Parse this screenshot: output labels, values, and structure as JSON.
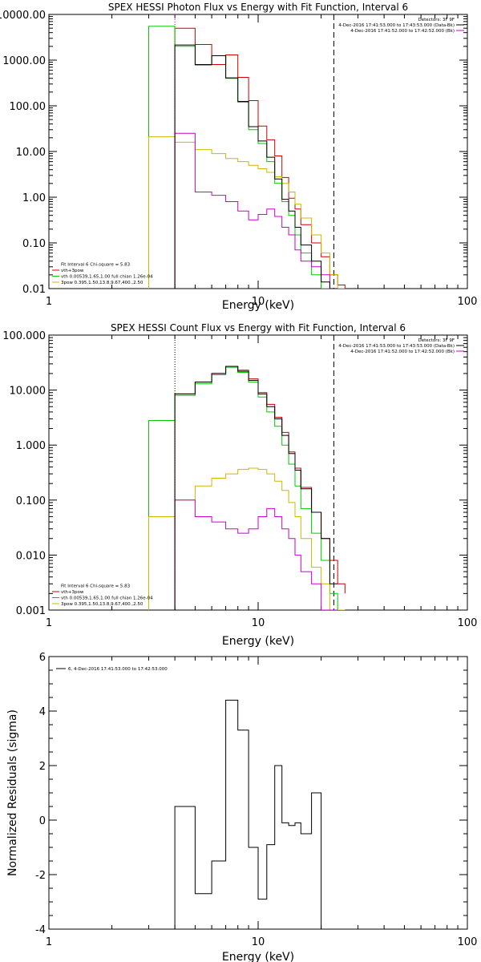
{
  "chart_data": [
    {
      "type": "line",
      "title": "SPEX HESSI Photon Flux vs Energy with Fit Function, Interval 6",
      "xlabel": "Energy (keV)",
      "ylabel": "",
      "x_scale": "log",
      "y_scale": "log",
      "xlim": [
        1,
        100
      ],
      "ylim": [
        0.01,
        10000
      ],
      "x_ticks": [
        1,
        10,
        100
      ],
      "x_tick_labels": [
        "1",
        "10",
        "100"
      ],
      "y_ticks": [
        0.01,
        0.1,
        1,
        10,
        100,
        1000,
        10000
      ],
      "y_tick_labels": [
        "0.01",
        "0.10",
        "1.00",
        "10.00",
        "100.00",
        "1000.00",
        "10000.00"
      ],
      "vlines": [
        {
          "x": 4,
          "style": "dotted",
          "color": "#cc00cc"
        },
        {
          "x": 23,
          "style": "dashed",
          "color": "#000000"
        }
      ],
      "legend_top_right": [
        {
          "text": "Detectors: 3F 9F",
          "color": ""
        },
        {
          "text": "4-Dec-2016 17:41:53.000 to 17:43:53.000 (Data-Bk)",
          "color": "#000000"
        },
        {
          "text": "4-Dec-2016 17:41:52.000 to 17:42:52.000 (Bk)",
          "color": "#cc00cc"
        }
      ],
      "legend_bottom_left": [
        {
          "text": "Fit Interval 6   Chi-square = 5.83",
          "color": ""
        },
        {
          "text": "vth+3pow",
          "color": "#cc0000"
        },
        {
          "text": "vth 0.00539,1.65,1.00  full chian 1.26e-04",
          "color": "#00cc00"
        },
        {
          "text": "3pow 0.395,1.50,13.8,9.67,400.,2.50",
          "color": "#ccb800"
        }
      ],
      "bin_edges": [
        3,
        4,
        5,
        6,
        7,
        8,
        9,
        10,
        11,
        12,
        13,
        14,
        15,
        16,
        18,
        20,
        22,
        24,
        26
      ],
      "series": [
        {
          "values": [
            5000,
            2200,
            800,
            1300,
            420,
            130,
            36,
            18,
            8,
            2.7,
            0.95,
            0.55,
            0.25,
            0.1,
            0.05,
            0.02,
            0.012,
            0.01
          ],
          "color": "#cc0000",
          "start_bin": 1
        },
        {
          "values": [
            5500,
            2000,
            780,
            1250,
            400,
            120,
            30,
            15,
            6,
            2.0,
            0.8,
            0.4,
            0.15,
            0.06,
            0.02,
            0.01,
            0.01,
            0.01
          ],
          "color": "#00cc00",
          "start_bin": 0
        },
        {
          "values": [
            21,
            16,
            11,
            9,
            7,
            6,
            5,
            4.2,
            3.5,
            2.8,
            2.0,
            1.3,
            0.7,
            0.35,
            0.15,
            0.06,
            0.02,
            0.01
          ],
          "color": "#ccb800",
          "start_bin": 0
        },
        {
          "values": [
            25,
            1.3,
            1.1,
            0.8,
            0.5,
            0.32,
            0.42,
            0.55,
            0.38,
            0.22,
            0.15,
            0.07,
            0.04,
            0.03,
            0.02,
            0.01
          ],
          "color": "#cc00cc",
          "start_bin": 1
        },
        {
          "values": [
            2150,
            800,
            1250,
            410,
            125,
            35,
            17,
            7.5,
            2.5,
            0.9,
            0.5,
            0.22,
            0.09,
            0.04,
            0.014,
            0.01
          ],
          "color": "#000000",
          "start_bin": 1
        }
      ]
    },
    {
      "type": "line",
      "title": "SPEX HESSI Count Flux vs Energy with Fit Function, Interval 6",
      "xlabel": "Energy (keV)",
      "ylabel": "",
      "x_scale": "log",
      "y_scale": "log",
      "xlim": [
        1,
        100
      ],
      "ylim": [
        0.001,
        100
      ],
      "x_ticks": [
        1,
        10,
        100
      ],
      "x_tick_labels": [
        "1",
        "10",
        "100"
      ],
      "y_ticks": [
        0.001,
        0.01,
        0.1,
        1,
        10,
        100
      ],
      "y_tick_labels": [
        "0.001",
        "0.010",
        "0.100",
        "1.000",
        "10.000",
        "100.000"
      ],
      "vlines": [
        {
          "x": 4,
          "style": "dotted",
          "color": "#000000"
        },
        {
          "x": 23,
          "style": "dashed",
          "color": "#000000"
        }
      ],
      "legend_top_right": [
        {
          "text": "Detectors: 3F 9F",
          "color": ""
        },
        {
          "text": "4-Dec-2016 17:41:53.000 to 17:43:53.000 (Data-Bk)",
          "color": "#000000"
        },
        {
          "text": "4-Dec-2016 17:41:52.000 to 17:42:52.000 (Bk)",
          "color": "#cc00cc"
        }
      ],
      "legend_bottom_left": [
        {
          "text": "Fit Interval 6   Chi-square = 5.83",
          "color": ""
        },
        {
          "text": "vth+3pow",
          "color": "#cc0000"
        },
        {
          "text": "vth 0.00539,1.65,1.00  full chian 1.26e-04",
          "color": "#00cc00"
        },
        {
          "text": "3pow 0.395,1.50,13.8,9.67,400.,2.50",
          "color": "#ccb800"
        }
      ],
      "bin_edges": [
        3,
        4,
        5,
        6,
        7,
        8,
        9,
        10,
        11,
        12,
        13,
        14,
        15,
        16,
        18,
        20,
        22,
        24,
        26
      ],
      "series": [
        {
          "values": [
            8.5,
            14,
            20,
            27,
            23,
            16,
            9,
            5.5,
            3.2,
            1.7,
            0.75,
            0.38,
            0.17,
            0.06,
            0.02,
            0.008,
            0.003,
            0.002
          ],
          "color": "#cc0000",
          "start_bin": 1
        },
        {
          "values": [
            2.8,
            8,
            13,
            19,
            26,
            21,
            14,
            7.5,
            4,
            2.2,
            1.0,
            0.45,
            0.18,
            0.07,
            0.025,
            0.008,
            0.002,
            0.001
          ],
          "color": "#00cc00",
          "start_bin": 0
        },
        {
          "values": [
            0.05,
            0.1,
            0.18,
            0.25,
            0.3,
            0.36,
            0.38,
            0.36,
            0.3,
            0.22,
            0.15,
            0.09,
            0.05,
            0.02,
            0.006,
            0.003,
            0.001,
            0.001
          ],
          "color": "#ccb800",
          "start_bin": 0
        },
        {
          "values": [
            0.1,
            0.05,
            0.04,
            0.03,
            0.025,
            0.03,
            0.05,
            0.07,
            0.05,
            0.03,
            0.02,
            0.01,
            0.005,
            0.003,
            0.001,
            0.001
          ],
          "color": "#cc00cc",
          "start_bin": 1
        },
        {
          "values": [
            8.5,
            14,
            20,
            27,
            22,
            15,
            8.5,
            5,
            3,
            1.5,
            0.7,
            0.35,
            0.16,
            0.06,
            0.02,
            0.003
          ],
          "color": "#000000",
          "start_bin": 1
        }
      ]
    },
    {
      "type": "line",
      "title": "",
      "xlabel": "Energy (keV)",
      "ylabel": "Normalized Residuals (sigma)",
      "x_scale": "log",
      "y_scale": "linear",
      "xlim": [
        1,
        100
      ],
      "ylim": [
        -4,
        6
      ],
      "x_ticks": [
        1,
        10,
        100
      ],
      "x_tick_labels": [
        "1",
        "10",
        "100"
      ],
      "y_ticks": [
        -4,
        -2,
        0,
        2,
        4,
        6
      ],
      "y_tick_labels": [
        "-4",
        "-2",
        "0",
        "2",
        "4",
        "6"
      ],
      "legend_top_left": [
        {
          "text": "6,  4-Dec-2016 17:41:53.000 to 17:42:53.000",
          "color": "#000000"
        }
      ],
      "bin_edges": [
        4,
        5,
        6,
        7,
        8,
        9,
        10,
        11,
        12,
        13,
        14,
        15,
        16,
        18,
        20,
        22
      ],
      "series": [
        {
          "values": [
            0.5,
            -2.7,
            -1.5,
            4.4,
            3.3,
            -1.0,
            -2.9,
            -0.9,
            2.0,
            -0.1,
            -0.2,
            -0.1,
            -0.5,
            1.0
          ],
          "color": "#000000",
          "start_bin": 0
        }
      ]
    }
  ]
}
